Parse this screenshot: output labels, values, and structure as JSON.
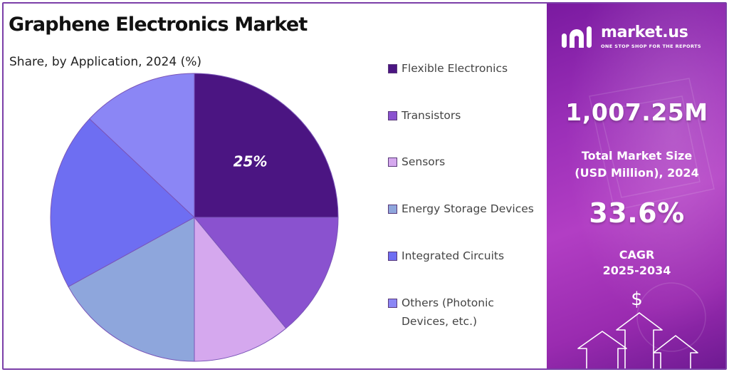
{
  "title": "Graphene Electronics Market",
  "subtitle": "Share, by Application, 2024 (%)",
  "chart_data": {
    "type": "pie",
    "title": "Graphene Electronics Market",
    "subtitle": "Share, by Application, 2024 (%)",
    "categories": [
      "Flexible Electronics",
      "Transistors",
      "Sensors",
      "Energy Storage Devices",
      "Integrated Circuits",
      "Others (Photonic Devices, etc.)"
    ],
    "values": [
      25,
      14,
      11,
      17,
      20,
      13
    ],
    "colors": [
      "#4b1582",
      "#8a52cf",
      "#d5a8ee",
      "#8ea6dc",
      "#6e6ef2",
      "#8b86f5"
    ],
    "data_labels": [
      "25%",
      "",
      "",
      "",
      "",
      ""
    ],
    "legend_position": "right"
  },
  "legend": [
    {
      "label": "Flexible Electronics",
      "color": "#4b1582"
    },
    {
      "label": "Transistors",
      "color": "#8a52cf"
    },
    {
      "label": "Sensors",
      "color": "#d5a8ee"
    },
    {
      "label": "Energy Storage Devices",
      "color": "#8ea6dc"
    },
    {
      "label": "Integrated Circuits",
      "color": "#6e6ef2"
    },
    {
      "label": "Others (Photonic Devices, etc.)",
      "color": "#8b86f5"
    }
  ],
  "sidebar": {
    "brand": "market.us",
    "tagline": "ONE STOP SHOP FOR THE REPORTS",
    "market_size_value": "1,007.25M",
    "market_size_label_line1": "Total Market Size",
    "market_size_label_line2": "(USD Million), 2024",
    "cagr_value": "33.6%",
    "cagr_label_line1": "CAGR",
    "cagr_label_line2": "2025-2034",
    "dollar_symbol": "$"
  }
}
